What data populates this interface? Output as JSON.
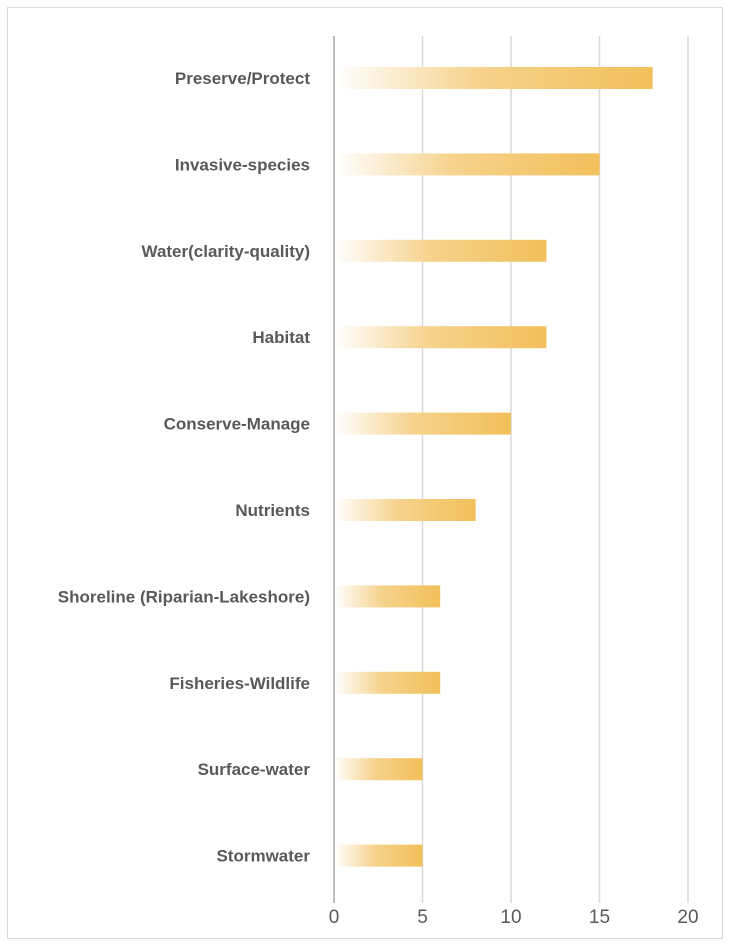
{
  "chart_data": {
    "type": "bar",
    "orientation": "horizontal",
    "categories": [
      "Preserve/Protect",
      "Invasive-species",
      "Water(clarity-quality)",
      "Habitat",
      "Conserve-Manage",
      "Nutrients",
      "Shoreline (Riparian-Lakeshore)",
      "Fisheries-Wildlife",
      "Surface-water",
      "Stormwater"
    ],
    "values": [
      18,
      15,
      12,
      12,
      10,
      8,
      6,
      6,
      5,
      5
    ],
    "title": "",
    "xlabel": "",
    "ylabel": "",
    "xlim": [
      0,
      20
    ],
    "xticks": [
      "0",
      "5",
      "10",
      "15",
      "20"
    ],
    "grid": true,
    "legend": "none",
    "colors": {
      "bar": "#f2c05a",
      "bar_fade": "#ffffff",
      "grid": "#d9d9d9",
      "axis": "#bfbfbf",
      "text": "#595959"
    }
  }
}
